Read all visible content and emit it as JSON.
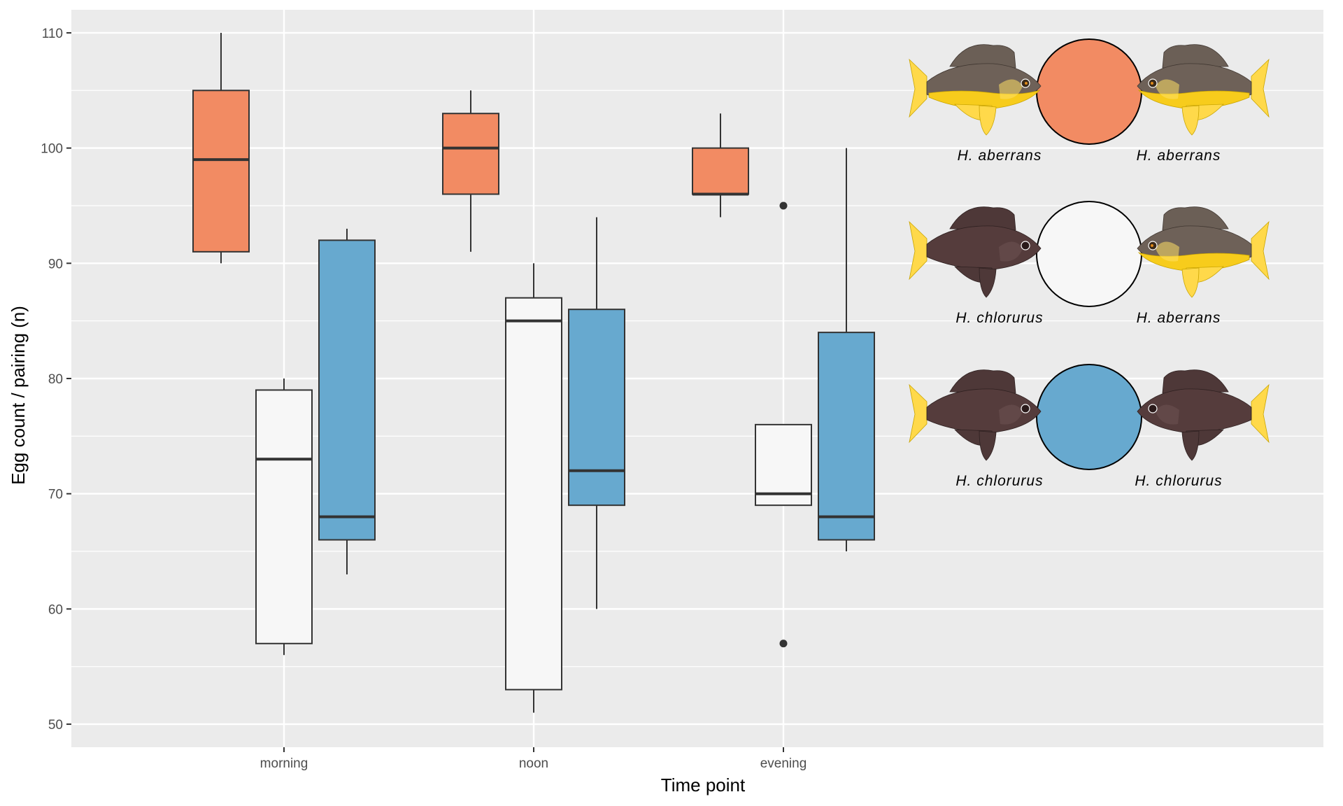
{
  "chart_data": {
    "type": "box",
    "xlabel": "Time point",
    "ylabel": "Egg count / pairing (n)",
    "categories": [
      "morning",
      "noon",
      "evening"
    ],
    "ylim": [
      48,
      112
    ],
    "yticks": [
      50,
      60,
      70,
      80,
      90,
      100,
      110
    ],
    "grid": true,
    "series": [
      {
        "fill": "#f28b63",
        "boxes": [
          {
            "min": 90,
            "q1": 91,
            "median": 99,
            "q3": 105,
            "max": 110,
            "outliers": []
          },
          {
            "min": 91,
            "q1": 96,
            "median": 100,
            "q3": 103,
            "max": 105,
            "outliers": []
          },
          {
            "min": 94,
            "q1": 96,
            "median": 96,
            "q3": 100,
            "max": 103,
            "outliers": []
          }
        ]
      },
      {
        "fill": "#f7f7f7",
        "boxes": [
          {
            "min": 56,
            "q1": 57,
            "median": 73,
            "q3": 79,
            "max": 80,
            "outliers": []
          },
          {
            "min": 51,
            "q1": 53,
            "median": 85,
            "q3": 87,
            "max": 90,
            "outliers": []
          },
          {
            "min": 69,
            "q1": 69,
            "median": 70,
            "q3": 76,
            "max": 76,
            "outliers": [
              95,
              57
            ]
          }
        ]
      },
      {
        "fill": "#67a9cf",
        "boxes": [
          {
            "min": 63,
            "q1": 66,
            "median": 68,
            "q3": 92,
            "max": 93,
            "outliers": []
          },
          {
            "min": 60,
            "q1": 69,
            "median": 72,
            "q3": 86,
            "max": 94,
            "outliers": []
          },
          {
            "min": 65,
            "q1": 66,
            "median": 68,
            "q3": 84,
            "max": 100,
            "outliers": []
          }
        ]
      }
    ],
    "legend": {
      "placement": "top-right",
      "entries": [
        {
          "left": "H. aberrans",
          "right": "H. aberrans",
          "fill": "#f28b63",
          "left_color": "aberrans",
          "right_color": "aberrans"
        },
        {
          "left": "H. chlorurus",
          "right": "H. aberrans",
          "fill": "#f7f7f7",
          "left_color": "chlorurus",
          "right_color": "aberrans"
        },
        {
          "left": "H. chlorurus",
          "right": "H. chlorurus",
          "fill": "#67a9cf",
          "left_color": "chlorurus",
          "right_color": "chlorurus"
        }
      ]
    }
  },
  "colors": {
    "panel": "#ebebeb",
    "grid": "#ffffff",
    "aberrans_body": "#6e6158",
    "aberrans_belly": "#f7cc1c",
    "chlorurus_body": "#553c3c",
    "tail": "#f7cc1c"
  }
}
